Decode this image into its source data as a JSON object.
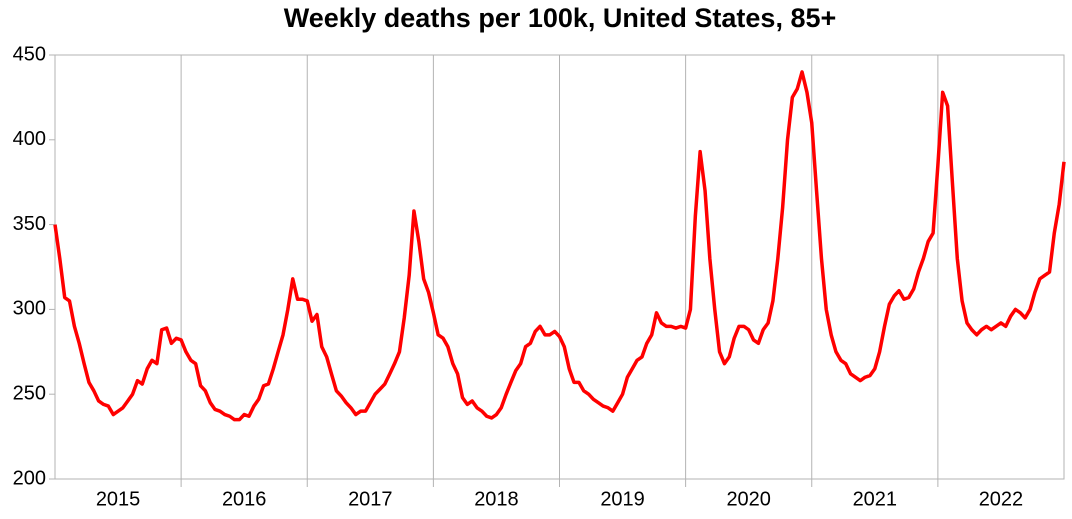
{
  "chart_data": {
    "type": "line",
    "title": "Weekly deaths per 100k, United States, 85+",
    "color": "#ff0000",
    "xlim": [
      2015,
      2023
    ],
    "ylim": [
      200,
      450
    ],
    "yticks": [
      200,
      250,
      300,
      350,
      400,
      450
    ],
    "xticks": [
      {
        "value": 2015.5,
        "label": "2015"
      },
      {
        "value": 2016.5,
        "label": "2016"
      },
      {
        "value": 2017.5,
        "label": "2017"
      },
      {
        "value": 2018.5,
        "label": "2018"
      },
      {
        "value": 2019.5,
        "label": "2019"
      },
      {
        "value": 2020.5,
        "label": "2020"
      },
      {
        "value": 2021.5,
        "label": "2021"
      },
      {
        "value": 2022.5,
        "label": "2022"
      }
    ],
    "x": [
      2015.0,
      2015.038,
      2015.077,
      2015.115,
      2015.154,
      2015.192,
      2015.231,
      2015.269,
      2015.308,
      2015.346,
      2015.385,
      2015.423,
      2015.462,
      2015.5,
      2015.538,
      2015.577,
      2015.615,
      2015.654,
      2015.692,
      2015.731,
      2015.769,
      2015.808,
      2015.846,
      2015.885,
      2015.923,
      2015.962,
      2016.0,
      2016.038,
      2016.077,
      2016.115,
      2016.154,
      2016.192,
      2016.231,
      2016.269,
      2016.308,
      2016.346,
      2016.385,
      2016.423,
      2016.462,
      2016.5,
      2016.538,
      2016.577,
      2016.615,
      2016.654,
      2016.692,
      2016.731,
      2016.769,
      2016.808,
      2016.846,
      2016.885,
      2016.923,
      2016.962,
      2017.0,
      2017.038,
      2017.077,
      2017.115,
      2017.154,
      2017.192,
      2017.231,
      2017.269,
      2017.308,
      2017.346,
      2017.385,
      2017.423,
      2017.462,
      2017.5,
      2017.538,
      2017.577,
      2017.615,
      2017.654,
      2017.692,
      2017.731,
      2017.769,
      2017.808,
      2017.846,
      2017.885,
      2017.923,
      2017.962,
      2018.0,
      2018.038,
      2018.077,
      2018.115,
      2018.154,
      2018.192,
      2018.231,
      2018.269,
      2018.308,
      2018.346,
      2018.385,
      2018.423,
      2018.462,
      2018.5,
      2018.538,
      2018.577,
      2018.615,
      2018.654,
      2018.692,
      2018.731,
      2018.769,
      2018.808,
      2018.846,
      2018.885,
      2018.923,
      2018.962,
      2019.0,
      2019.038,
      2019.077,
      2019.115,
      2019.154,
      2019.192,
      2019.231,
      2019.269,
      2019.308,
      2019.346,
      2019.385,
      2019.423,
      2019.462,
      2019.5,
      2019.538,
      2019.577,
      2019.615,
      2019.654,
      2019.692,
      2019.731,
      2019.769,
      2019.808,
      2019.846,
      2019.885,
      2019.923,
      2019.962,
      2020.0,
      2020.038,
      2020.077,
      2020.115,
      2020.154,
      2020.192,
      2020.231,
      2020.269,
      2020.308,
      2020.346,
      2020.385,
      2020.423,
      2020.462,
      2020.5,
      2020.538,
      2020.577,
      2020.615,
      2020.654,
      2020.692,
      2020.731,
      2020.769,
      2020.808,
      2020.846,
      2020.885,
      2020.923,
      2020.962,
      2021.0,
      2021.038,
      2021.077,
      2021.115,
      2021.154,
      2021.192,
      2021.231,
      2021.269,
      2021.308,
      2021.346,
      2021.385,
      2021.423,
      2021.462,
      2021.5,
      2021.538,
      2021.577,
      2021.615,
      2021.654,
      2021.692,
      2021.731,
      2021.769,
      2021.808,
      2021.846,
      2021.885,
      2021.923,
      2021.962,
      2022.0,
      2022.038,
      2022.077,
      2022.115,
      2022.154,
      2022.192,
      2022.231,
      2022.269,
      2022.308,
      2022.346,
      2022.385,
      2022.423,
      2022.462,
      2022.5,
      2022.538,
      2022.577,
      2022.615,
      2022.654,
      2022.692,
      2022.731,
      2022.769,
      2022.808,
      2022.846,
      2022.885,
      2022.923,
      2022.962,
      2023.0
    ],
    "values": [
      350,
      330,
      307,
      305,
      290,
      280,
      268,
      257,
      252,
      246,
      244,
      243,
      238,
      240,
      242,
      246,
      250,
      258,
      256,
      265,
      270,
      268,
      288,
      289,
      280,
      283,
      282,
      275,
      270,
      268,
      255,
      252,
      245,
      241,
      240,
      238,
      237,
      235,
      235,
      238,
      237,
      243,
      247,
      255,
      256,
      265,
      275,
      285,
      300,
      318,
      306,
      306,
      305,
      293,
      297,
      278,
      272,
      262,
      252,
      249,
      245,
      242,
      238,
      240,
      240,
      245,
      250,
      253,
      256,
      262,
      268,
      275,
      295,
      320,
      358,
      340,
      318,
      310,
      298,
      285,
      283,
      278,
      268,
      262,
      248,
      244,
      246,
      242,
      240,
      237,
      236,
      238,
      242,
      250,
      257,
      264,
      268,
      278,
      280,
      287,
      290,
      285,
      285,
      287,
      284,
      278,
      265,
      257,
      257,
      252,
      250,
      247,
      245,
      243,
      242,
      240,
      245,
      250,
      260,
      265,
      270,
      272,
      280,
      285,
      298,
      292,
      290,
      290,
      289,
      290,
      289,
      300,
      355,
      393,
      370,
      330,
      300,
      275,
      268,
      272,
      283,
      290,
      290,
      288,
      282,
      280,
      288,
      292,
      305,
      330,
      360,
      400,
      425,
      430,
      440,
      428,
      410,
      370,
      330,
      300,
      285,
      275,
      270,
      268,
      262,
      260,
      258,
      260,
      261,
      265,
      275,
      290,
      303,
      308,
      311,
      306,
      307,
      312,
      322,
      330,
      340,
      345,
      385,
      428,
      420,
      375,
      330,
      305,
      292,
      288,
      285,
      288,
      290,
      288,
      290,
      292,
      290,
      296,
      300,
      298,
      295,
      300,
      310,
      318,
      320,
      322,
      345,
      362,
      387
    ]
  }
}
